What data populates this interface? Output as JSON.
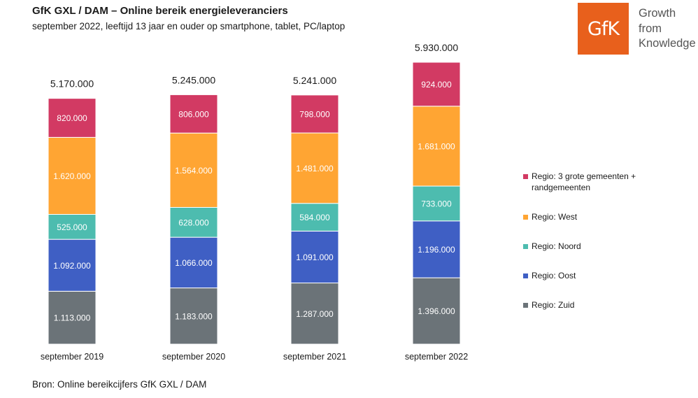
{
  "header": {
    "title": "GfK GXL / DAM – Online bereik energieleveranciers",
    "subtitle": "september 2022, leeftijd 13 jaar en ouder op smartphone, tablet, PC/laptop"
  },
  "logo": {
    "mark": "GfK",
    "lines": [
      "Growth",
      "from",
      "Knowledge"
    ]
  },
  "footer": {
    "source": "Bron: Online bereikcijfers GfK GXL / DAM"
  },
  "colors": {
    "zuid": "#6b7378",
    "oost": "#3f5fc4",
    "noord": "#4dbcaf",
    "west": "#ffa533",
    "grote": "#d23a63",
    "accent": "#e8601c"
  },
  "chart_data": {
    "type": "bar",
    "stacked": true,
    "categories": [
      "september 2019",
      "september 2020",
      "september 2021",
      "september 2022"
    ],
    "totals": [
      5170000,
      5245000,
      5241000,
      5930000
    ],
    "total_labels": [
      "5.170.000",
      "5.245.000",
      "5.241.000",
      "5.930.000"
    ],
    "series": [
      {
        "key": "zuid",
        "name": "Regio: Zuid",
        "values": [
          1113000,
          1183000,
          1287000,
          1396000
        ],
        "labels": [
          "1.113.000",
          "1.183.000",
          "1.287.000",
          "1.396.000"
        ]
      },
      {
        "key": "oost",
        "name": "Regio: Oost",
        "values": [
          1092000,
          1066000,
          1091000,
          1196000
        ],
        "labels": [
          "1.092.000",
          "1.066.000",
          "1.091.000",
          "1.196.000"
        ]
      },
      {
        "key": "noord",
        "name": "Regio: Noord",
        "values": [
          525000,
          628000,
          584000,
          733000
        ],
        "labels": [
          "525.000",
          "628.000",
          "584.000",
          "733.000"
        ]
      },
      {
        "key": "west",
        "name": "Regio: West",
        "values": [
          1620000,
          1564000,
          1481000,
          1681000
        ],
        "labels": [
          "1.620.000",
          "1.564.000",
          "1.481.000",
          "1.681.000"
        ]
      },
      {
        "key": "grote",
        "name": "Regio: 3 grote gemeenten + randgemeenten",
        "values": [
          820000,
          806000,
          798000,
          924000
        ],
        "labels": [
          "820.000",
          "806.000",
          "798.000",
          "924.000"
        ]
      }
    ],
    "legend_order": [
      "grote",
      "west",
      "noord",
      "oost",
      "zuid"
    ],
    "legend_position": "right",
    "grid": false
  }
}
